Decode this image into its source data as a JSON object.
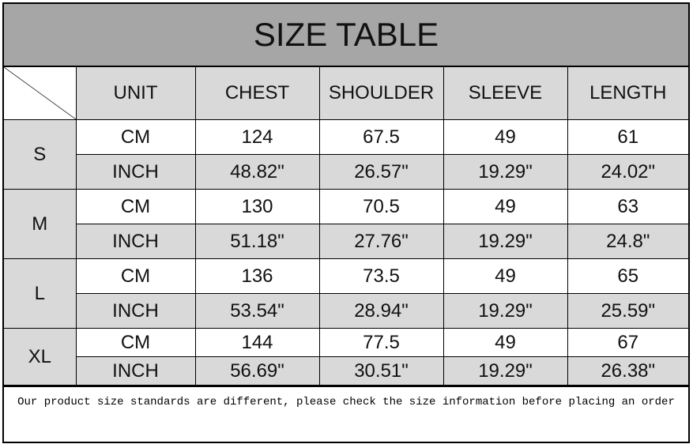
{
  "title": "SIZE TABLE",
  "headers": [
    "UNIT",
    "CHEST",
    "SHOULDER",
    "SLEEVE",
    "LENGTH"
  ],
  "sizes": [
    {
      "name": "S",
      "cm": [
        "CM",
        "124",
        "67.5",
        "49",
        "61"
      ],
      "inch": [
        "INCH",
        "48.82\"",
        "26.57\"",
        "19.29\"",
        "24.02\""
      ]
    },
    {
      "name": "M",
      "cm": [
        "CM",
        "130",
        "70.5",
        "49",
        "63"
      ],
      "inch": [
        "INCH",
        "51.18\"",
        "27.76\"",
        "19.29\"",
        "24.8\""
      ]
    },
    {
      "name": "L",
      "cm": [
        "CM",
        "136",
        "73.5",
        "49",
        "65"
      ],
      "inch": [
        "INCH",
        "53.54\"",
        "28.94\"",
        "19.29\"",
        "25.59\""
      ]
    },
    {
      "name": "XL",
      "cm": [
        "CM",
        "144",
        "77.5",
        "49",
        "67"
      ],
      "inch": [
        "INCH",
        "56.69\"",
        "30.51\"",
        "19.29\"",
        "26.38\""
      ]
    }
  ],
  "note": "Our product size standards are different, please check the size information before placing an order",
  "colors": {
    "title_bg": "#a6a6a6",
    "header_bg": "#d9d9d9"
  }
}
